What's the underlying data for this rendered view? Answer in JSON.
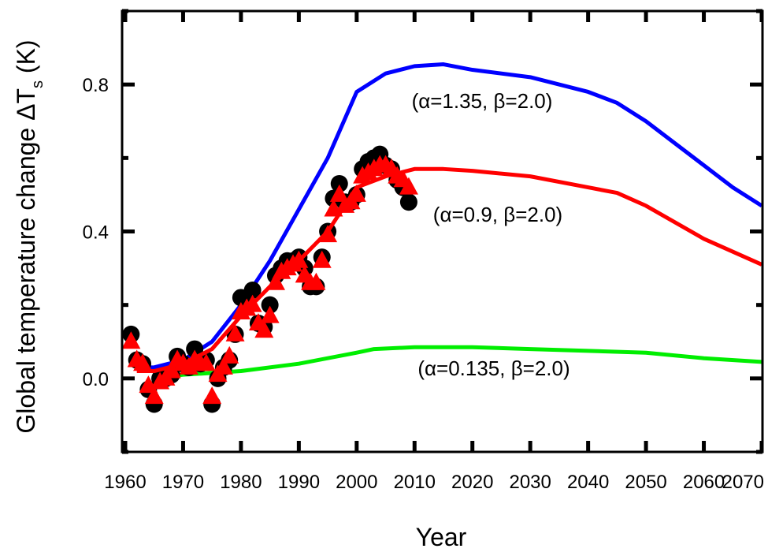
{
  "chart_data": {
    "type": "line",
    "xlabel": "Year",
    "ylabel": "Global temperature change ΔT",
    "ylabel_sub": "s",
    "ylabel_unit": " (K)",
    "xlim": [
      1960,
      2070
    ],
    "ylim": [
      -0.2,
      1.0
    ],
    "xticks": [
      1960,
      1970,
      1980,
      1990,
      2000,
      2010,
      2020,
      2030,
      2040,
      2050,
      2060,
      2070
    ],
    "yticks": [
      {
        "value": 0,
        "label": "0.0"
      },
      0.4,
      0.8
    ],
    "yticks_minor": [
      -0.2,
      0.2,
      0.6,
      1.0
    ],
    "series": [
      {
        "color": "#0000ff",
        "marker": "none",
        "x": [
          1962,
          1965,
          1970,
          1975,
          1980,
          1985,
          1990,
          1995,
          2000,
          2005,
          2010,
          2015,
          2020,
          2030,
          2040,
          2045,
          2050,
          2060,
          2065,
          2070
        ],
        "values": [
          0.03,
          0.03,
          0.05,
          0.1,
          0.2,
          0.32,
          0.46,
          0.6,
          0.78,
          0.83,
          0.85,
          0.855,
          0.84,
          0.82,
          0.78,
          0.75,
          0.7,
          0.58,
          0.52,
          0.47
        ]
      },
      {
        "color": "#00ee00",
        "marker": "none",
        "x": [
          1965,
          1970,
          1980,
          1990,
          2000,
          2003,
          2010,
          2020,
          2030,
          2040,
          2050,
          2060,
          2070
        ],
        "values": [
          0.0,
          0.01,
          0.02,
          0.04,
          0.07,
          0.08,
          0.085,
          0.085,
          0.08,
          0.075,
          0.07,
          0.055,
          0.045
        ]
      },
      {
        "color": "#000000",
        "marker": "circle",
        "x": [
          1961,
          1962,
          1963,
          1964,
          1965,
          1966,
          1967,
          1968,
          1969,
          1970,
          1971,
          1972,
          1973,
          1974,
          1975,
          1976,
          1977,
          1978,
          1979,
          1980,
          1981,
          1982,
          1983,
          1984,
          1985,
          1986,
          1987,
          1988,
          1989,
          1990,
          1991,
          1992,
          1993,
          1994,
          1995,
          1996,
          1997,
          1998,
          1999,
          2000,
          2001,
          2002,
          2003,
          2004,
          2005,
          2006,
          2007,
          2008,
          2009
        ],
        "values": [
          0.12,
          0.05,
          0.04,
          -0.03,
          -0.07,
          0.0,
          0.0,
          0.01,
          0.06,
          0.04,
          0.03,
          0.08,
          0.04,
          0.05,
          -0.07,
          0.0,
          0.03,
          0.05,
          0.12,
          0.22,
          0.2,
          0.24,
          0.15,
          0.14,
          0.2,
          0.28,
          0.3,
          0.32,
          0.32,
          0.33,
          0.3,
          0.25,
          0.25,
          0.33,
          0.4,
          0.49,
          0.53,
          0.48,
          0.48,
          0.5,
          0.57,
          0.59,
          0.6,
          0.61,
          0.58,
          0.57,
          0.54,
          0.52,
          0.48
        ]
      },
      {
        "color": "#ff0000",
        "marker": "triangle",
        "x": [
          1961,
          1962,
          1963,
          1964,
          1965,
          1966,
          1967,
          1968,
          1969,
          1970,
          1971,
          1972,
          1973,
          1974,
          1975,
          1976,
          1977,
          1978,
          1979,
          1980,
          1981,
          1982,
          1983,
          1984,
          1985,
          1986,
          1987,
          1988,
          1989,
          1990,
          1991,
          1992,
          1993,
          1994,
          1995,
          1996,
          1997,
          1998,
          1999,
          2000,
          2001,
          2002,
          2003,
          2004,
          2005,
          2006,
          2007,
          2008,
          2009
        ],
        "values": [
          0.1,
          0.05,
          0.04,
          -0.02,
          -0.05,
          -0.01,
          0.0,
          0.02,
          0.05,
          0.04,
          0.03,
          0.05,
          0.04,
          0.04,
          -0.05,
          0.01,
          0.03,
          0.06,
          0.12,
          0.18,
          0.19,
          0.2,
          0.15,
          0.13,
          0.17,
          0.26,
          0.29,
          0.3,
          0.31,
          0.32,
          0.28,
          0.26,
          0.26,
          0.32,
          0.39,
          0.46,
          0.5,
          0.47,
          0.48,
          0.5,
          0.55,
          0.56,
          0.57,
          0.58,
          0.58,
          0.57,
          0.55,
          0.54,
          0.52
        ]
      },
      {
        "color": "#ff0000",
        "marker": "none",
        "x": [
          1962,
          1965,
          1970,
          1975,
          1980,
          1985,
          1990,
          1995,
          2000,
          2005,
          2010,
          2015,
          2020,
          2030,
          2040,
          2045,
          2050,
          2060,
          2070
        ],
        "values": [
          0.02,
          0.02,
          0.04,
          0.08,
          0.17,
          0.25,
          0.32,
          0.4,
          0.52,
          0.55,
          0.57,
          0.57,
          0.565,
          0.55,
          0.52,
          0.505,
          0.47,
          0.38,
          0.31
        ]
      }
    ],
    "annotations": [
      "(α=1.35, β=2.0)",
      "(α=0.9, β=2.0)",
      "(α=0.135, β=2.0)"
    ]
  }
}
